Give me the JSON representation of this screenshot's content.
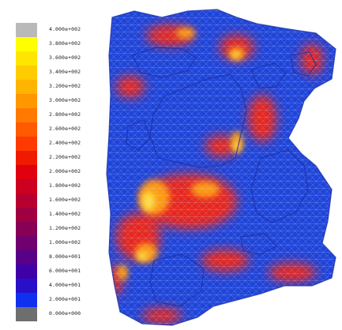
{
  "legend": {
    "entries": [
      {
        "label": "4.000e+002",
        "color": "#b9b9b9"
      },
      {
        "label": "3.800e+002",
        "color": "#ffff00"
      },
      {
        "label": "3.600e+002",
        "color": "#ffe600"
      },
      {
        "label": "3.400e+002",
        "color": "#ffcc00"
      },
      {
        "label": "3.200e+002",
        "color": "#ffb400"
      },
      {
        "label": "3.000e+002",
        "color": "#ff9800"
      },
      {
        "label": "2.800e+002",
        "color": "#ff7a00"
      },
      {
        "label": "2.600e+002",
        "color": "#ff5a00"
      },
      {
        "label": "2.400e+002",
        "color": "#ff3a00"
      },
      {
        "label": "2.200e+002",
        "color": "#f01a00"
      },
      {
        "label": "2.000e+002",
        "color": "#e00010"
      },
      {
        "label": "1.800e+002",
        "color": "#cc0020"
      },
      {
        "label": "1.600e+002",
        "color": "#b80030"
      },
      {
        "label": "1.400e+002",
        "color": "#a00040"
      },
      {
        "label": "1.200e+002",
        "color": "#880055"
      },
      {
        "label": "1.000e+002",
        "color": "#700070"
      },
      {
        "label": "8.000e+001",
        "color": "#580088"
      },
      {
        "label": "6.000e+001",
        "color": "#4000a8"
      },
      {
        "label": "4.000e+001",
        "color": "#2810c8"
      },
      {
        "label": "2.000e+001",
        "color": "#1030f0"
      },
      {
        "label": "0.000e+000",
        "color": "#6e6e6e"
      }
    ]
  },
  "model": {
    "base_color": "#1f44d8",
    "mesh_color": "#9fb2ff",
    "hot_color": "#e8261a",
    "warm_color": "#ff9a10",
    "peak_color": "#ffe040"
  }
}
